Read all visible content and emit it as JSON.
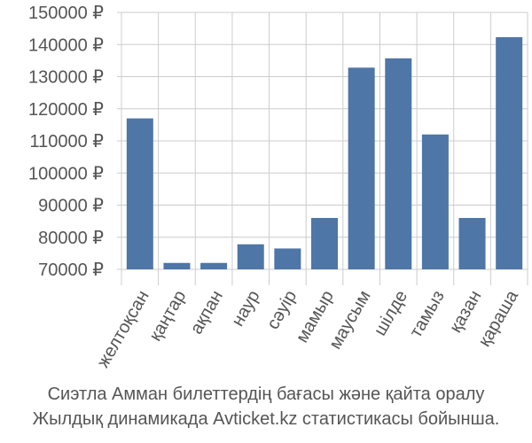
{
  "chart_data": {
    "type": "bar",
    "categories": [
      "желтоқсан",
      "қаңтар",
      "ақпан",
      "наур",
      "сәуір",
      "мамыр",
      "маусым",
      "шілде",
      "тамыз",
      "қазан",
      "қараша"
    ],
    "series": [
      {
        "values": [
          117000,
          72000,
          72000,
          77800,
          76500,
          86000,
          132800,
          135700,
          112000,
          86000,
          142300
        ]
      }
    ],
    "y_ticks": [
      "70000 ₽",
      "80000 ₽",
      "90000 ₽",
      "100000 ₽",
      "110000 ₽",
      "120000 ₽",
      "130000 ₽",
      "140000 ₽",
      "150000 ₽"
    ],
    "ylim": [
      70000,
      150000
    ],
    "grid": true,
    "bar_color": "#4e76a6",
    "grid_color": "#cccccc",
    "caption_lines": [
      "Сиэтла Амман билеттердің бағасы және қайта оралу",
      "Жылдық динамикада Avticket.kz статистикасы бойынша."
    ]
  }
}
